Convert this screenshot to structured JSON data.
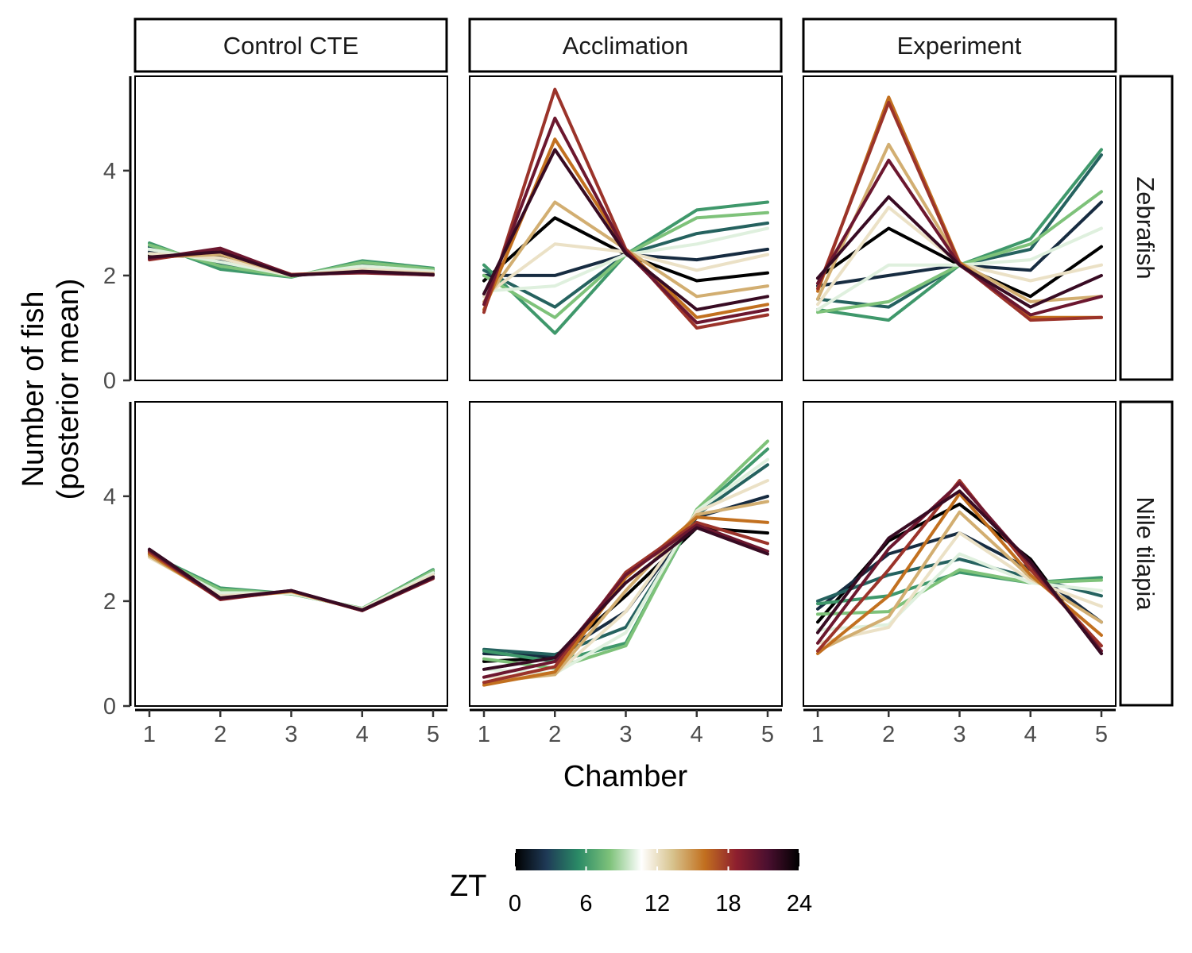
{
  "chart_data": {
    "type": "line",
    "facet_columns": [
      "Control CTE",
      "Acclimation",
      "Experiment"
    ],
    "facet_rows": [
      "Zebrafish",
      "Nile tilapia"
    ],
    "x": [
      1,
      2,
      3,
      4,
      5
    ],
    "x_ticks": [
      "1",
      "2",
      "3",
      "4",
      "5"
    ],
    "xlabel": "Chamber",
    "ylabel": [
      "Number of fish",
      "(posterior mean)"
    ],
    "ylim": [
      0,
      5.8
    ],
    "y_ticks": [
      0,
      2,
      4
    ],
    "y_tick_labels": [
      "0",
      "2",
      "4"
    ],
    "grid": false,
    "color_by": "ZT",
    "legend": {
      "title": "ZT",
      "placement": "bottom",
      "ticks": [
        0,
        6,
        12,
        18,
        24
      ],
      "tick_labels": [
        "0",
        "6",
        "12",
        "18",
        "24"
      ],
      "colors": [
        "#000000",
        "#1f3a57",
        "#2a8a66",
        "#7ec27a",
        "#ffffff",
        "#d7c28c",
        "#c2701f",
        "#8e1f2e",
        "#4a0f2f",
        "#000000"
      ]
    },
    "zt_values": [
      0,
      2,
      4,
      6,
      8,
      10,
      12,
      14,
      16,
      18,
      20,
      22
    ],
    "panels": [
      {
        "row": "Zebrafish",
        "column": "Control CTE",
        "series": [
          {
            "zt": 0,
            "values": [
              2.38,
              2.36,
              2.0,
              2.1,
              2.02
            ]
          },
          {
            "zt": 2,
            "values": [
              2.45,
              2.3,
              1.99,
              2.15,
              2.06
            ]
          },
          {
            "zt": 4,
            "values": [
              2.55,
              2.2,
              1.98,
              2.22,
              2.1
            ]
          },
          {
            "zt": 6,
            "values": [
              2.62,
              2.12,
              1.97,
              2.28,
              2.14
            ]
          },
          {
            "zt": 8,
            "values": [
              2.58,
              2.18,
              1.98,
              2.25,
              2.12
            ]
          },
          {
            "zt": 10,
            "values": [
              2.5,
              2.26,
              2.0,
              2.18,
              2.08
            ]
          },
          {
            "zt": 12,
            "values": [
              2.42,
              2.33,
              2.0,
              2.12,
              2.05
            ]
          },
          {
            "zt": 14,
            "values": [
              2.35,
              2.4,
              2.01,
              2.08,
              2.03
            ]
          },
          {
            "zt": 16,
            "values": [
              2.32,
              2.46,
              2.02,
              2.06,
              2.02
            ]
          },
          {
            "zt": 18,
            "values": [
              2.3,
              2.5,
              2.02,
              2.05,
              2.01
            ]
          },
          {
            "zt": 20,
            "values": [
              2.32,
              2.52,
              2.01,
              2.06,
              2.01
            ]
          },
          {
            "zt": 22,
            "values": [
              2.35,
              2.45,
              2.0,
              2.08,
              2.02
            ]
          }
        ]
      },
      {
        "row": "Zebrafish",
        "column": "Acclimation",
        "series": [
          {
            "zt": 0,
            "values": [
              1.9,
              3.1,
              2.4,
              1.9,
              2.05
            ]
          },
          {
            "zt": 2,
            "values": [
              2.0,
              2.0,
              2.4,
              2.3,
              2.5
            ]
          },
          {
            "zt": 4,
            "values": [
              2.1,
              1.4,
              2.4,
              2.8,
              3.0
            ]
          },
          {
            "zt": 6,
            "values": [
              2.2,
              0.9,
              2.4,
              3.25,
              3.4
            ]
          },
          {
            "zt": 8,
            "values": [
              2.0,
              1.2,
              2.4,
              3.1,
              3.2
            ]
          },
          {
            "zt": 10,
            "values": [
              1.7,
              1.8,
              2.4,
              2.6,
              2.9
            ]
          },
          {
            "zt": 12,
            "values": [
              1.6,
              2.6,
              2.45,
              2.1,
              2.4
            ]
          },
          {
            "zt": 14,
            "values": [
              1.5,
              3.4,
              2.5,
              1.6,
              1.8
            ]
          },
          {
            "zt": 16,
            "values": [
              1.35,
              4.6,
              2.5,
              1.2,
              1.45
            ]
          },
          {
            "zt": 18,
            "values": [
              1.3,
              5.55,
              2.5,
              1.0,
              1.25
            ]
          },
          {
            "zt": 20,
            "values": [
              1.45,
              5.0,
              2.45,
              1.1,
              1.35
            ]
          },
          {
            "zt": 22,
            "values": [
              1.65,
              4.4,
              2.42,
              1.35,
              1.6
            ]
          }
        ]
      },
      {
        "row": "Zebrafish",
        "column": "Experiment",
        "series": [
          {
            "zt": 0,
            "values": [
              1.95,
              2.9,
              2.2,
              1.6,
              2.55
            ]
          },
          {
            "zt": 2,
            "values": [
              1.8,
              2.0,
              2.2,
              2.1,
              3.4
            ]
          },
          {
            "zt": 4,
            "values": [
              1.55,
              1.4,
              2.2,
              2.5,
              4.3
            ]
          },
          {
            "zt": 6,
            "values": [
              1.35,
              1.15,
              2.2,
              2.7,
              4.4
            ]
          },
          {
            "zt": 8,
            "values": [
              1.3,
              1.5,
              2.2,
              2.6,
              3.6
            ]
          },
          {
            "zt": 10,
            "values": [
              1.35,
              2.2,
              2.2,
              2.3,
              2.9
            ]
          },
          {
            "zt": 12,
            "values": [
              1.45,
              3.3,
              2.22,
              1.9,
              2.2
            ]
          },
          {
            "zt": 14,
            "values": [
              1.55,
              4.5,
              2.25,
              1.5,
              1.6
            ]
          },
          {
            "zt": 16,
            "values": [
              1.7,
              5.4,
              2.25,
              1.2,
              1.2
            ]
          },
          {
            "zt": 18,
            "values": [
              1.75,
              5.3,
              2.22,
              1.15,
              1.2
            ]
          },
          {
            "zt": 20,
            "values": [
              1.85,
              4.2,
              2.2,
              1.25,
              1.6
            ]
          },
          {
            "zt": 22,
            "values": [
              1.95,
              3.5,
              2.2,
              1.4,
              2.0
            ]
          }
        ]
      },
      {
        "row": "Nile tilapia",
        "column": "Control CTE",
        "series": [
          {
            "zt": 0,
            "values": [
              2.98,
              2.08,
              2.19,
              1.83,
              2.48
            ]
          },
          {
            "zt": 2,
            "values": [
              2.95,
              2.12,
              2.17,
              1.84,
              2.52
            ]
          },
          {
            "zt": 4,
            "values": [
              2.92,
              2.18,
              2.15,
              1.85,
              2.56
            ]
          },
          {
            "zt": 6,
            "values": [
              2.9,
              2.25,
              2.14,
              1.86,
              2.6
            ]
          },
          {
            "zt": 8,
            "values": [
              2.88,
              2.22,
              2.14,
              1.86,
              2.58
            ]
          },
          {
            "zt": 10,
            "values": [
              2.85,
              2.16,
              2.15,
              1.85,
              2.54
            ]
          },
          {
            "zt": 12,
            "values": [
              2.83,
              2.1,
              2.17,
              1.84,
              2.5
            ]
          },
          {
            "zt": 14,
            "values": [
              2.86,
              2.06,
              2.18,
              1.83,
              2.46
            ]
          },
          {
            "zt": 16,
            "values": [
              2.9,
              2.04,
              2.19,
              1.82,
              2.44
            ]
          },
          {
            "zt": 18,
            "values": [
              2.94,
              2.03,
              2.2,
              1.82,
              2.43
            ]
          },
          {
            "zt": 20,
            "values": [
              2.97,
              2.04,
              2.2,
              1.82,
              2.44
            ]
          },
          {
            "zt": 22,
            "values": [
              2.99,
              2.06,
              2.2,
              1.83,
              2.46
            ]
          }
        ]
      },
      {
        "row": "Nile tilapia",
        "column": "Acclimation",
        "series": [
          {
            "zt": 0,
            "values": [
              0.85,
              0.92,
              2.1,
              3.4,
              3.3
            ]
          },
          {
            "zt": 2,
            "values": [
              1.0,
              0.95,
              1.8,
              3.6,
              4.0
            ]
          },
          {
            "zt": 4,
            "values": [
              1.08,
              0.98,
              1.5,
              3.65,
              4.6
            ]
          },
          {
            "zt": 6,
            "values": [
              1.05,
              0.85,
              1.2,
              3.7,
              4.9
            ]
          },
          {
            "zt": 8,
            "values": [
              0.9,
              0.72,
              1.15,
              3.75,
              5.05
            ]
          },
          {
            "zt": 10,
            "values": [
              0.7,
              0.62,
              1.4,
              3.72,
              4.7
            ]
          },
          {
            "zt": 12,
            "values": [
              0.55,
              0.6,
              1.8,
              3.7,
              4.3
            ]
          },
          {
            "zt": 14,
            "values": [
              0.45,
              0.6,
              2.2,
              3.65,
              3.9
            ]
          },
          {
            "zt": 16,
            "values": [
              0.4,
              0.65,
              2.45,
              3.6,
              3.5
            ]
          },
          {
            "zt": 18,
            "values": [
              0.45,
              0.75,
              2.55,
              3.5,
              3.1
            ]
          },
          {
            "zt": 20,
            "values": [
              0.55,
              0.85,
              2.5,
              3.45,
              2.95
            ]
          },
          {
            "zt": 22,
            "values": [
              0.7,
              0.92,
              2.35,
              3.4,
              2.9
            ]
          }
        ]
      },
      {
        "row": "Nile tilapia",
        "column": "Experiment",
        "series": [
          {
            "zt": 0,
            "values": [
              1.6,
              3.15,
              3.85,
              2.8,
              1.0
            ]
          },
          {
            "zt": 2,
            "values": [
              1.85,
              2.9,
              3.3,
              2.6,
              1.6
            ]
          },
          {
            "zt": 4,
            "values": [
              2.0,
              2.5,
              2.8,
              2.45,
              2.1
            ]
          },
          {
            "zt": 6,
            "values": [
              1.95,
              2.1,
              2.55,
              2.35,
              2.45
            ]
          },
          {
            "zt": 8,
            "values": [
              1.75,
              1.8,
              2.6,
              2.35,
              2.4
            ]
          },
          {
            "zt": 10,
            "values": [
              1.45,
              1.55,
              2.9,
              2.35,
              2.2
            ]
          },
          {
            "zt": 12,
            "values": [
              1.2,
              1.5,
              3.3,
              2.4,
              1.9
            ]
          },
          {
            "zt": 14,
            "values": [
              1.05,
              1.7,
              3.7,
              2.45,
              1.6
            ]
          },
          {
            "zt": 16,
            "values": [
              1.0,
              2.1,
              4.05,
              2.5,
              1.35
            ]
          },
          {
            "zt": 18,
            "values": [
              1.05,
              2.6,
              4.3,
              2.6,
              1.15
            ]
          },
          {
            "zt": 20,
            "values": [
              1.2,
              3.0,
              4.25,
              2.7,
              1.05
            ]
          },
          {
            "zt": 22,
            "values": [
              1.4,
              3.2,
              4.1,
              2.75,
              1.0
            ]
          }
        ]
      }
    ]
  }
}
